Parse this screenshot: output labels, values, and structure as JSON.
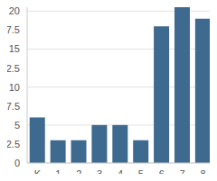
{
  "chart_data": {
    "type": "bar",
    "categories": [
      "K",
      "1",
      "2",
      "3",
      "4",
      "5",
      "6",
      "7",
      "8"
    ],
    "values": [
      6,
      3,
      3,
      5,
      5,
      3,
      18,
      21,
      19
    ],
    "color": "#3d6a8e",
    "ylim": [
      0,
      21
    ],
    "yticks": [
      0,
      2.5,
      5,
      7.5,
      10,
      12.5,
      15,
      17.5,
      20
    ],
    "grid": true
  }
}
